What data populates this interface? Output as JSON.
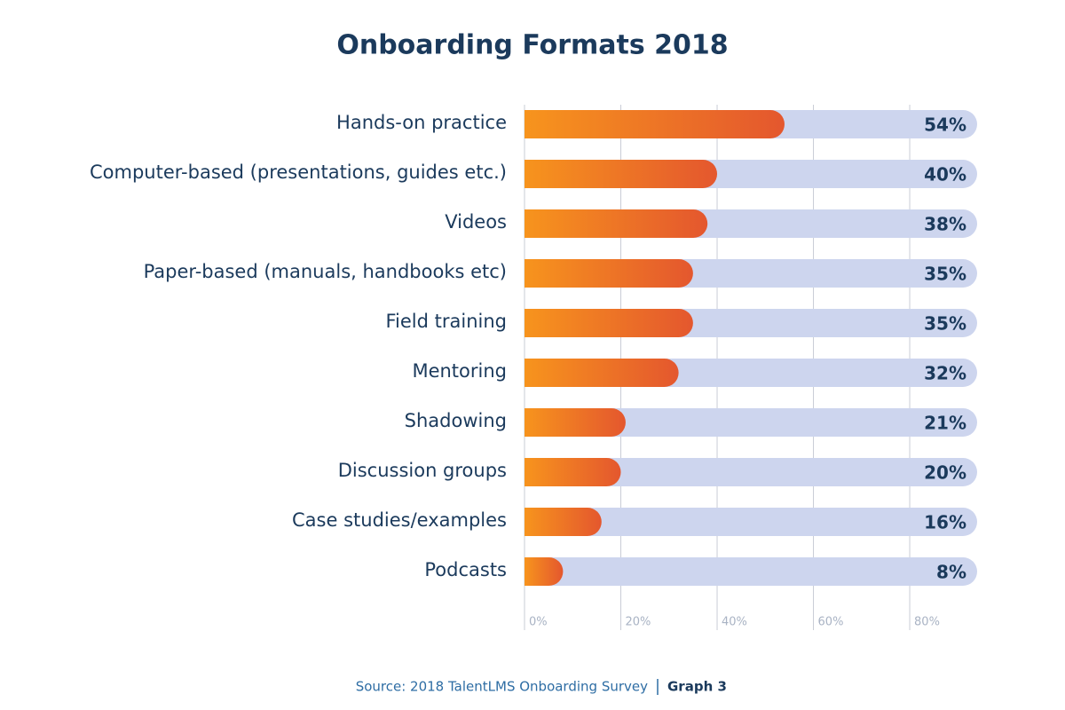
{
  "chart_data": {
    "type": "bar",
    "orientation": "horizontal",
    "title": "Onboarding Formats 2018",
    "categories": [
      "Hands-on practice",
      "Computer-based (presentations, guides etc.)",
      "Videos",
      "Paper-based (manuals, handbooks etc)",
      "Field training",
      "Mentoring",
      "Shadowing",
      "Discussion groups",
      "Case studies/examples",
      "Podcasts"
    ],
    "values": [
      54,
      40,
      38,
      35,
      35,
      32,
      21,
      20,
      16,
      8
    ],
    "value_labels": [
      "54%",
      "40%",
      "38%",
      "35%",
      "35%",
      "32%",
      "21%",
      "20%",
      "16%",
      "8%"
    ],
    "color": [
      "#f7941d",
      "#e4572e"
    ],
    "track_color": "#cdd5ee",
    "xlim": [
      0,
      94
    ],
    "xticks": [
      {
        "value": 0,
        "label": "0%"
      },
      {
        "value": 20,
        "label": "20%"
      },
      {
        "value": 40,
        "label": "40%"
      },
      {
        "value": 60,
        "label": "60%"
      },
      {
        "value": 80,
        "label": "80%"
      }
    ],
    "grid": true,
    "source": "Source: 2018 TalentLMS Onboarding Survey",
    "figure_label": "Graph 3"
  }
}
